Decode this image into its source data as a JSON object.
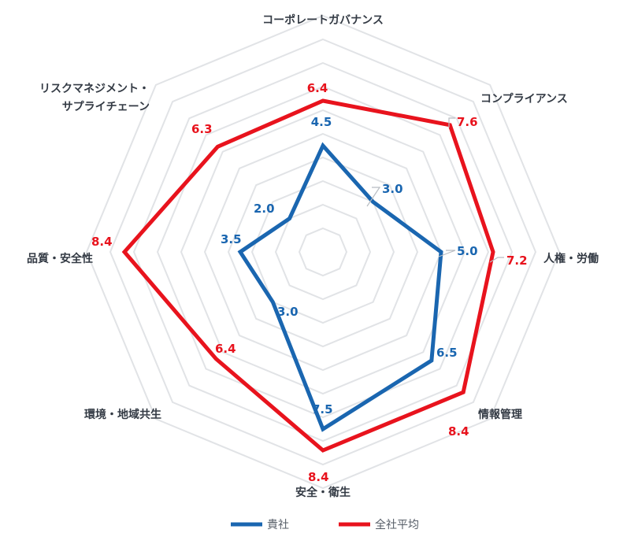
{
  "chart_data": {
    "type": "radar",
    "categories": [
      "コーポレートガバナンス",
      "コンプライアンス",
      "人権・労働",
      "情報管理",
      "安全・衛生",
      "環境・地域共生",
      "品質・安全性",
      "リスクマネジメント・サプライチェーン"
    ],
    "category_lines": [
      [
        "コーポレートガバナンス"
      ],
      [
        "コンプライアンス"
      ],
      [
        "人権・労働"
      ],
      [
        "情報管理"
      ],
      [
        "安全・衛生"
      ],
      [
        "環境・地域共生"
      ],
      [
        "品質・安全性"
      ],
      [
        "リスクマネジメント・",
        "サプライチェーン"
      ]
    ],
    "series": [
      {
        "name": "貴社",
        "values": [
          4.5,
          3.0,
          5.0,
          6.5,
          7.5,
          3.0,
          3.5,
          2.0
        ],
        "color": "#1a66b0"
      },
      {
        "name": "全社平均",
        "values": [
          6.4,
          7.6,
          7.2,
          8.4,
          8.4,
          6.4,
          8.4,
          6.3
        ],
        "color": "#e8131d"
      }
    ],
    "value_labels": [
      [
        "4.5",
        "3.0",
        "5.0",
        "6.5",
        "7.5",
        "3.0",
        "3.5",
        "2.0"
      ],
      [
        "6.4",
        "7.6",
        "7.2",
        "8.4",
        "8.4",
        "6.4",
        "8.4",
        "6.3"
      ]
    ],
    "range": [
      0,
      10
    ],
    "grid_levels": 10,
    "grid_shape": "octagon",
    "legend_position": "bottom"
  }
}
